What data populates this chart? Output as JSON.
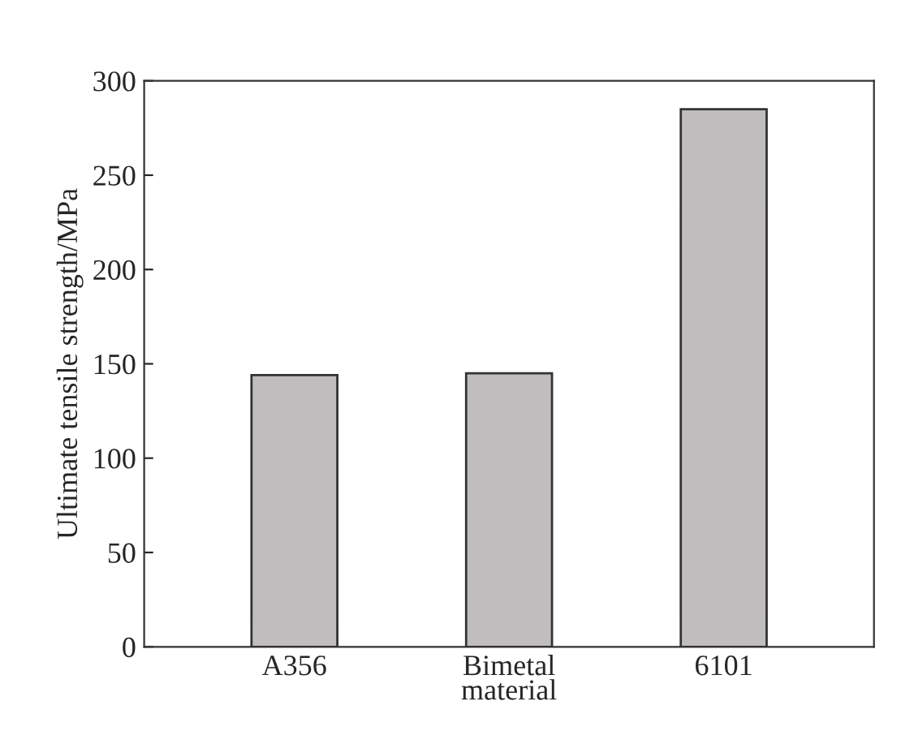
{
  "chart_data": {
    "type": "bar",
    "ylabel": "Ultimate tensile strength/MPa",
    "categories": [
      "A356",
      "Bimetal\nmaterial",
      "6101"
    ],
    "values": [
      144,
      145,
      285
    ],
    "color": "#c0bdbe",
    "ylim": [
      0,
      300
    ],
    "yticks": [
      0,
      50,
      100,
      150,
      200,
      250,
      300
    ],
    "grid": false
  }
}
